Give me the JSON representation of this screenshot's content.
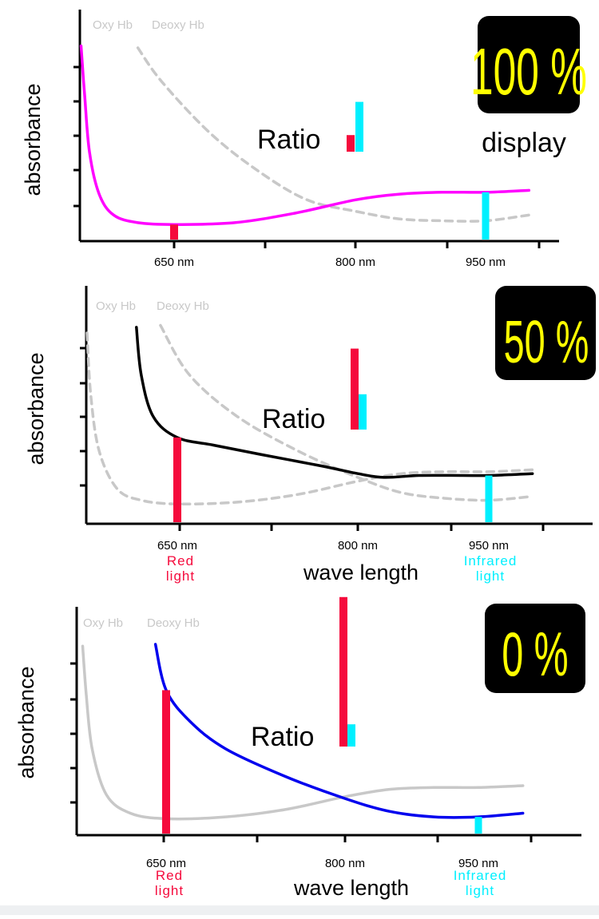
{
  "colors": {
    "oxy_100": "#ff00ff",
    "mix_50": "#000000",
    "deoxy_0": "#0000ee",
    "ghost": "#c8c8c8",
    "red_bar": "#f50a3c",
    "ir_bar": "#00f0ff",
    "badge_bg": "#000000",
    "badge_text": "#ffff00",
    "axis": "#000000"
  },
  "chart_data": [
    {
      "type": "line",
      "ylabel": "absorbance",
      "xlabel": "",
      "x_ticks": [
        {
          "nm": 650,
          "label": "650 nm"
        },
        {
          "nm": 800,
          "label": "800 nm"
        },
        {
          "nm": 950,
          "label": "950 nm"
        }
      ],
      "curve_labels": {
        "oxy": "Oxy Hb",
        "deoxy": "Deoxy Hb"
      },
      "badge": "100 %",
      "caption": "display",
      "ratio_label": "Ratio",
      "light_labels": {
        "red": "",
        "infrared": ""
      },
      "series": [
        {
          "curve": "oxy",
          "style": "solid",
          "color": "#ff00ff",
          "points": [
            [
              573,
              0.96
            ],
            [
              576,
              0.7
            ],
            [
              580,
              0.4
            ],
            [
              588,
              0.18
            ],
            [
              600,
              0.07
            ],
            [
              620,
              0.03
            ],
            [
              650,
              0.02
            ],
            [
              700,
              0.03
            ],
            [
              750,
              0.08
            ],
            [
              800,
              0.15
            ],
            [
              850,
              0.18
            ],
            [
              900,
              0.19
            ],
            [
              950,
              0.19
            ],
            [
              1000,
              0.2
            ]
          ]
        },
        {
          "curve": "deoxy",
          "style": "dashed",
          "color": "#c8c8c8",
          "points": [
            [
              620,
              0.95
            ],
            [
              640,
              0.77
            ],
            [
              680,
              0.5
            ],
            [
              720,
              0.3
            ],
            [
              760,
              0.15
            ],
            [
              800,
              0.09
            ],
            [
              850,
              0.05
            ],
            [
              900,
              0.04
            ],
            [
              950,
              0.04
            ],
            [
              1000,
              0.07
            ]
          ]
        }
      ],
      "marks": [
        {
          "nm": 650,
          "absorbance": 0.02,
          "color": "#f50a3c"
        },
        {
          "nm": 950,
          "absorbance": 0.19,
          "color": "#00f0ff"
        }
      ],
      "ratio_bars": {
        "red": 0.08,
        "ir": 0.24
      }
    },
    {
      "type": "line",
      "ylabel": "absorbance",
      "xlabel": "wave length",
      "x_ticks": [
        {
          "nm": 650,
          "label": "650 nm"
        },
        {
          "nm": 800,
          "label": "800 nm"
        },
        {
          "nm": 950,
          "label": "950 nm"
        }
      ],
      "curve_labels": {
        "oxy": "Oxy Hb",
        "deoxy": "Deoxy Hb"
      },
      "badge": "50 %",
      "caption": "",
      "ratio_label": "Ratio",
      "light_labels": {
        "red": "Red\nlight",
        "infrared": "Infrared\nlight"
      },
      "series": [
        {
          "curve": "oxy",
          "style": "dashed",
          "color": "#c8c8c8",
          "points": [
            [
              575,
              0.92
            ],
            [
              578,
              0.6
            ],
            [
              585,
              0.3
            ],
            [
              600,
              0.1
            ],
            [
              620,
              0.04
            ],
            [
              650,
              0.02
            ],
            [
              700,
              0.03
            ],
            [
              750,
              0.07
            ],
            [
              800,
              0.14
            ],
            [
              850,
              0.18
            ],
            [
              900,
              0.19
            ],
            [
              950,
              0.19
            ],
            [
              1000,
              0.2
            ]
          ]
        },
        {
          "curve": "mix",
          "style": "solid",
          "color": "#000000",
          "points": [
            [
              616,
              0.95
            ],
            [
              620,
              0.7
            ],
            [
              630,
              0.48
            ],
            [
              650,
              0.37
            ],
            [
              680,
              0.33
            ],
            [
              720,
              0.28
            ],
            [
              770,
              0.22
            ],
            [
              800,
              0.18
            ],
            [
              830,
              0.16
            ],
            [
              870,
              0.17
            ],
            [
              920,
              0.17
            ],
            [
              950,
              0.17
            ],
            [
              1000,
              0.18
            ]
          ]
        },
        {
          "curve": "deoxy",
          "style": "dashed",
          "color": "#c8c8c8",
          "points": [
            [
              636,
              0.96
            ],
            [
              660,
              0.7
            ],
            [
              700,
              0.48
            ],
            [
              750,
              0.3
            ],
            [
              800,
              0.16
            ],
            [
              850,
              0.08
            ],
            [
              900,
              0.05
            ],
            [
              950,
              0.04
            ],
            [
              1000,
              0.06
            ]
          ]
        }
      ],
      "marks": [
        {
          "nm": 650,
          "absorbance": 0.37,
          "color": "#f50a3c"
        },
        {
          "nm": 950,
          "absorbance": 0.17,
          "color": "#00f0ff"
        }
      ],
      "ratio_bars": {
        "red": 0.39,
        "ir": 0.17
      }
    },
    {
      "type": "line",
      "ylabel": "absorbance",
      "xlabel": "wave length",
      "x_ticks": [
        {
          "nm": 650,
          "label": "650 nm"
        },
        {
          "nm": 800,
          "label": "800 nm"
        },
        {
          "nm": 950,
          "label": "950 nm"
        }
      ],
      "curve_labels": {
        "oxy": "Oxy Hb",
        "deoxy": "Deoxy Hb"
      },
      "badge": "0 %",
      "caption": "",
      "ratio_label": "Ratio",
      "light_labels": {
        "red": "Red\nlight",
        "infrared": "Infrared\nlight"
      },
      "series": [
        {
          "curve": "oxy",
          "style": "solid",
          "color": "#c8c8c8",
          "points": [
            [
              580,
              0.96
            ],
            [
              583,
              0.7
            ],
            [
              588,
              0.4
            ],
            [
              600,
              0.15
            ],
            [
              620,
              0.05
            ],
            [
              650,
              0.02
            ],
            [
              700,
              0.03
            ],
            [
              750,
              0.07
            ],
            [
              800,
              0.14
            ],
            [
              850,
              0.18
            ],
            [
              900,
              0.19
            ],
            [
              950,
              0.19
            ],
            [
              1000,
              0.2
            ]
          ]
        },
        {
          "curve": "deoxy",
          "style": "solid",
          "color": "#0000ee",
          "points": [
            [
              641,
              0.97
            ],
            [
              650,
              0.72
            ],
            [
              670,
              0.55
            ],
            [
              700,
              0.4
            ],
            [
              750,
              0.25
            ],
            [
              800,
              0.13
            ],
            [
              850,
              0.06
            ],
            [
              900,
              0.03
            ],
            [
              950,
              0.03
            ],
            [
              1000,
              0.05
            ]
          ]
        }
      ],
      "marks": [
        {
          "nm": 650,
          "absorbance": 0.72,
          "color": "#f50a3c"
        },
        {
          "nm": 950,
          "absorbance": 0.03,
          "color": "#00f0ff"
        }
      ],
      "ratio_bars": {
        "red": 0.74,
        "ir": 0.11
      }
    }
  ]
}
